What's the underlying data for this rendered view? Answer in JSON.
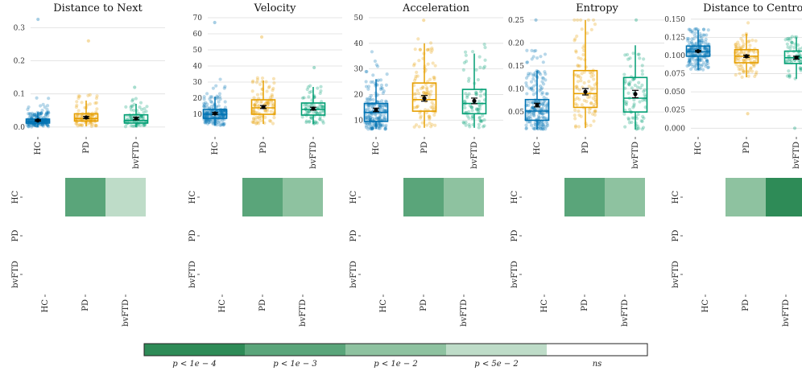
{
  "colors": {
    "HC": "#0072b2",
    "PD": "#e69f00",
    "bvFTD": "#009e73",
    "p_1e-4": "#2e8b57",
    "p_1e-3": "#5aa57a",
    "p_1e-2": "#8ec2a0",
    "p_5e-2": "#bedcc8",
    "ns": "#ffffff"
  },
  "chart_data": [
    {
      "type": "box",
      "title": "Distance to Next",
      "categories": [
        "HC",
        "PD",
        "bvFTD"
      ],
      "ylim": [
        -0.01,
        0.33
      ],
      "yticks": [
        0.0,
        0.1,
        0.2,
        0.3
      ],
      "ytick_labels": [
        "0.0",
        "0.1",
        "0.2",
        "0.3"
      ],
      "boxes": [
        {
          "name": "HC",
          "q1": 0.012,
          "median": 0.018,
          "q3": 0.024,
          "whisker_low": 0.0,
          "whisker_high": 0.045,
          "mean": 0.02,
          "sem": 0.002,
          "n": 200,
          "min": 0.0,
          "max": 0.09,
          "outliers": [
            0.325
          ]
        },
        {
          "name": "PD",
          "q1": 0.018,
          "median": 0.026,
          "q3": 0.04,
          "whisker_low": 0.002,
          "whisker_high": 0.08,
          "mean": 0.029,
          "sem": 0.003,
          "n": 100,
          "min": 0.0,
          "max": 0.1,
          "outliers": [
            0.26
          ]
        },
        {
          "name": "bvFTD",
          "q1": 0.012,
          "median": 0.02,
          "q3": 0.037,
          "whisker_low": 0.0,
          "whisker_high": 0.07,
          "mean": 0.026,
          "sem": 0.004,
          "n": 80,
          "min": 0.0,
          "max": 0.09,
          "outliers": [
            0.12
          ]
        }
      ],
      "heatmap": {
        "rows": [
          "HC",
          "PD",
          "bvFTD"
        ],
        "cols": [
          "HC",
          "PD",
          "bvFTD"
        ],
        "cells": [
          [
            "",
            "p_1e-3",
            "p_5e-2"
          ],
          [
            "",
            "",
            ""
          ],
          [
            "",
            "",
            ""
          ]
        ]
      }
    },
    {
      "type": "box",
      "title": "Velocity",
      "categories": [
        "HC",
        "PD",
        "bvFTD"
      ],
      "ylim": [
        0,
        70
      ],
      "yticks": [
        10,
        20,
        30,
        40,
        50,
        60,
        70
      ],
      "ytick_labels": [
        "10",
        "20",
        "30",
        "40",
        "50",
        "60",
        "70"
      ],
      "boxes": [
        {
          "name": "HC",
          "q1": 7.5,
          "median": 10,
          "q3": 13,
          "whisker_low": 3,
          "whisker_high": 21,
          "mean": 10.5,
          "sem": 0.6,
          "n": 200,
          "min": 3,
          "max": 32,
          "outliers": [
            67
          ]
        },
        {
          "name": "PD",
          "q1": 10,
          "median": 14,
          "q3": 19,
          "whisker_low": 4,
          "whisker_high": 31,
          "mean": 14.5,
          "sem": 0.9,
          "n": 100,
          "min": 4,
          "max": 33,
          "outliers": [
            58
          ]
        },
        {
          "name": "bvFTD",
          "q1": 9.5,
          "median": 13,
          "q3": 17,
          "whisker_low": 4,
          "whisker_high": 27,
          "mean": 13.5,
          "sem": 0.9,
          "n": 80,
          "min": 4,
          "max": 30,
          "outliers": [
            39
          ]
        }
      ],
      "heatmap": {
        "rows": [
          "HC",
          "PD",
          "bvFTD"
        ],
        "cols": [
          "HC",
          "PD",
          "bvFTD"
        ],
        "cells": [
          [
            "",
            "p_1e-3",
            "p_1e-2"
          ],
          [
            "",
            "",
            ""
          ],
          [
            "",
            "",
            ""
          ]
        ]
      }
    },
    {
      "type": "box",
      "title": "Acceleration",
      "categories": [
        "HC",
        "PD",
        "bvFTD"
      ],
      "ylim": [
        6,
        50
      ],
      "yticks": [
        10,
        20,
        30,
        40,
        50
      ],
      "ytick_labels": [
        "10",
        "20",
        "30",
        "40",
        "50"
      ],
      "boxes": [
        {
          "name": "HC",
          "q1": 9.5,
          "median": 13,
          "q3": 16.5,
          "whisker_low": 6.5,
          "whisker_high": 26,
          "mean": 14,
          "sem": 0.7,
          "n": 200,
          "min": 6.5,
          "max": 37,
          "outliers": []
        },
        {
          "name": "PD",
          "q1": 13.5,
          "median": 18,
          "q3": 24.5,
          "whisker_low": 7,
          "whisker_high": 40,
          "mean": 18.5,
          "sem": 1.1,
          "n": 100,
          "min": 7,
          "max": 43,
          "outliers": [
            49
          ]
        },
        {
          "name": "bvFTD",
          "q1": 12.5,
          "median": 16.5,
          "q3": 22,
          "whisker_low": 7,
          "whisker_high": 36,
          "mean": 17.5,
          "sem": 1.1,
          "n": 80,
          "min": 7,
          "max": 43,
          "outliers": []
        }
      ],
      "heatmap": {
        "rows": [
          "HC",
          "PD",
          "bvFTD"
        ],
        "cols": [
          "HC",
          "PD",
          "bvFTD"
        ],
        "cells": [
          [
            "",
            "p_1e-3",
            "p_1e-2"
          ],
          [
            "",
            "",
            ""
          ],
          [
            "",
            "",
            ""
          ]
        ]
      }
    },
    {
      "type": "box",
      "title": "Entropy",
      "categories": [
        "HC",
        "PD",
        "bvFTD"
      ],
      "ylim": [
        0.01,
        0.255
      ],
      "yticks": [
        0.05,
        0.1,
        0.15,
        0.2,
        0.25
      ],
      "ytick_labels": [
        "0.05",
        "0.10",
        "0.15",
        "0.20",
        "0.25"
      ],
      "boxes": [
        {
          "name": "HC",
          "q1": 0.032,
          "median": 0.052,
          "q3": 0.077,
          "whisker_low": 0.012,
          "whisker_high": 0.14,
          "mean": 0.065,
          "sem": 0.004,
          "n": 200,
          "min": 0.012,
          "max": 0.195,
          "outliers": [
            0.25
          ]
        },
        {
          "name": "PD",
          "q1": 0.06,
          "median": 0.09,
          "q3": 0.14,
          "whisker_low": 0.015,
          "whisker_high": 0.25,
          "mean": 0.094,
          "sem": 0.007,
          "n": 100,
          "min": 0.015,
          "max": 0.25,
          "outliers": []
        },
        {
          "name": "bvFTD",
          "q1": 0.05,
          "median": 0.08,
          "q3": 0.125,
          "whisker_low": 0.012,
          "whisker_high": 0.195,
          "mean": 0.089,
          "sem": 0.008,
          "n": 80,
          "min": 0.012,
          "max": 0.25,
          "outliers": [
            0.25
          ]
        }
      ],
      "heatmap": {
        "rows": [
          "HC",
          "PD",
          "bvFTD"
        ],
        "cols": [
          "HC",
          "PD",
          "bvFTD"
        ],
        "cells": [
          [
            "",
            "p_1e-3",
            "p_1e-2"
          ],
          [
            "",
            "",
            ""
          ],
          [
            "",
            "",
            ""
          ]
        ]
      }
    },
    {
      "type": "box",
      "title": "Distance to Centroid",
      "categories": [
        "HC",
        "PD",
        "bvFTD"
      ],
      "ylim": [
        -0.003,
        0.152
      ],
      "yticks": [
        0.0,
        0.025,
        0.05,
        0.075,
        0.1,
        0.125,
        0.15
      ],
      "ytick_labels": [
        "0.000",
        "0.025",
        "0.050",
        "0.075",
        "0.100",
        "0.125",
        "0.150"
      ],
      "boxes": [
        {
          "name": "HC",
          "q1": 0.099,
          "median": 0.105,
          "q3": 0.113,
          "whisker_low": 0.08,
          "whisker_high": 0.135,
          "mean": 0.106,
          "sem": 0.001,
          "n": 200,
          "min": 0.062,
          "max": 0.137,
          "outliers": []
        },
        {
          "name": "PD",
          "q1": 0.09,
          "median": 0.099,
          "q3": 0.108,
          "whisker_low": 0.07,
          "whisker_high": 0.13,
          "mean": 0.099,
          "sem": 0.0015,
          "n": 100,
          "min": 0.045,
          "max": 0.145,
          "outliers": [
            0.02
          ]
        },
        {
          "name": "bvFTD",
          "q1": 0.089,
          "median": 0.097,
          "q3": 0.106,
          "whisker_low": 0.068,
          "whisker_high": 0.125,
          "mean": 0.097,
          "sem": 0.002,
          "n": 80,
          "min": 0.045,
          "max": 0.127,
          "outliers": [
            0.0
          ]
        }
      ],
      "heatmap": {
        "rows": [
          "HC",
          "PD",
          "bvFTD"
        ],
        "cols": [
          "HC",
          "PD",
          "bvFTD"
        ],
        "cells": [
          [
            "",
            "p_1e-2",
            "p_1e-4"
          ],
          [
            "",
            "",
            ""
          ],
          [
            "",
            "",
            ""
          ]
        ]
      }
    }
  ],
  "legend": {
    "entries": [
      {
        "key": "p_1e-4",
        "label": "p < 1e − 4"
      },
      {
        "key": "p_1e-3",
        "label": "p < 1e − 3"
      },
      {
        "key": "p_1e-2",
        "label": "p < 1e − 2"
      },
      {
        "key": "p_5e-2",
        "label": "p < 5e − 2"
      },
      {
        "key": "ns",
        "label": "ns"
      }
    ]
  }
}
